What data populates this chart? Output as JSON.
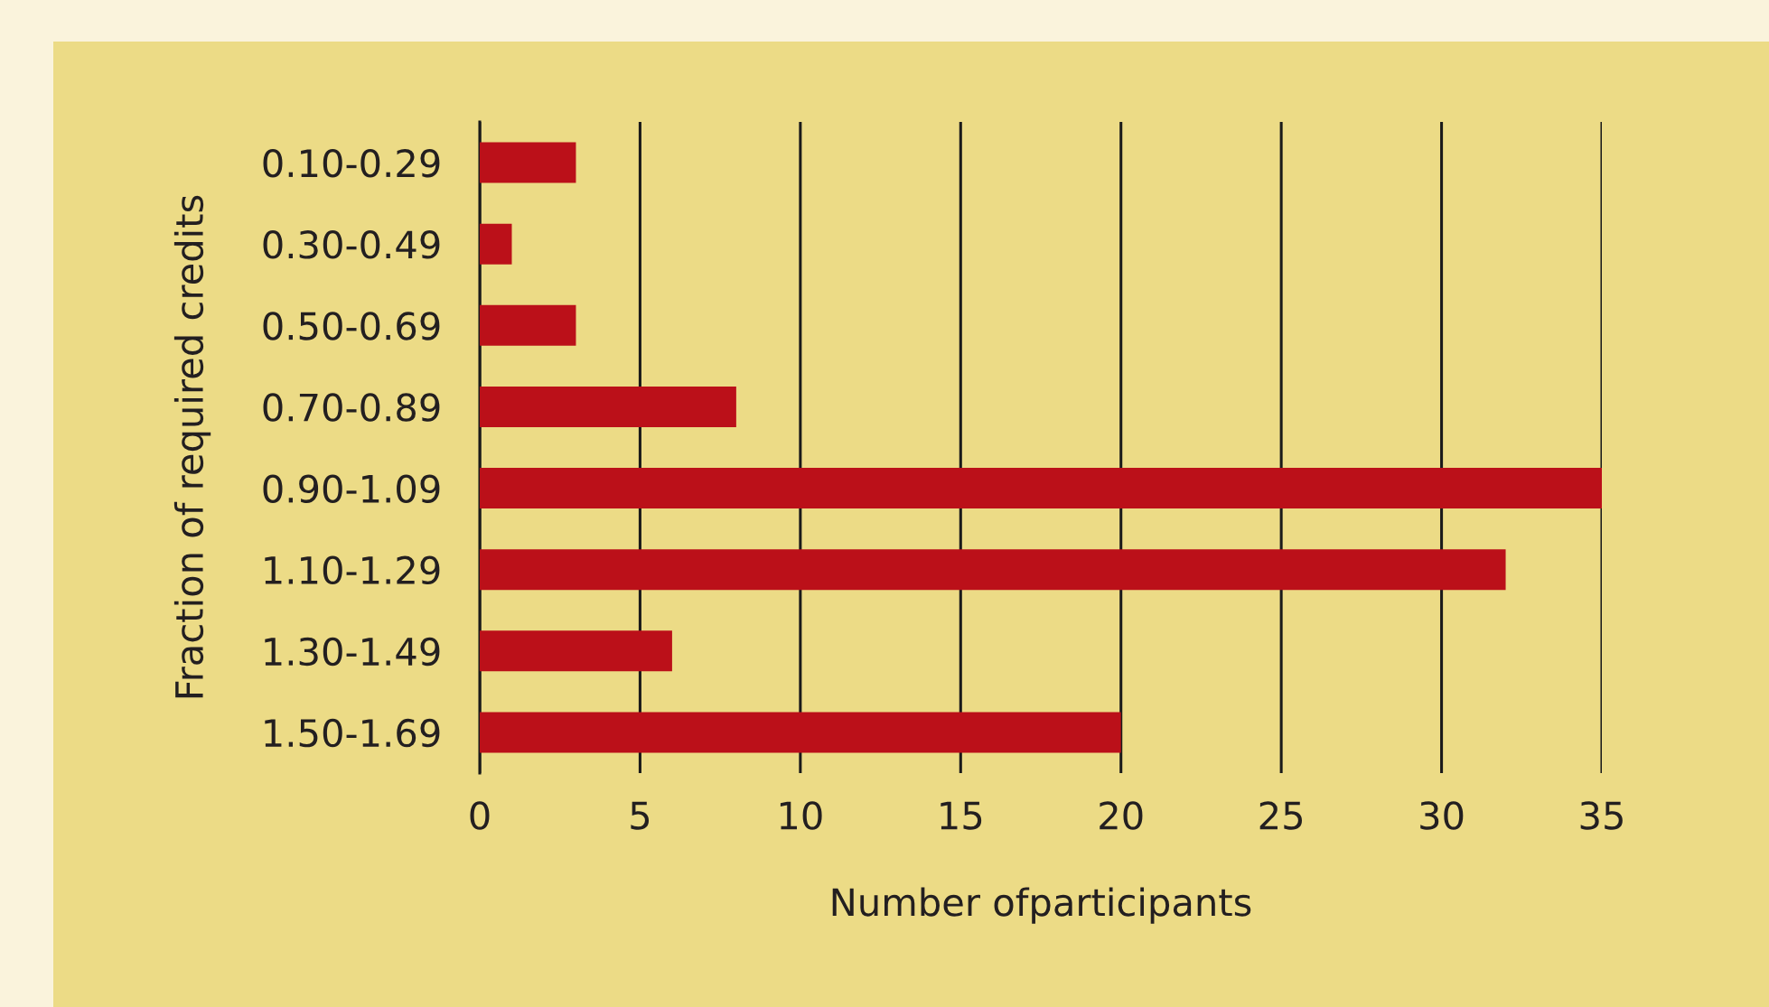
{
  "chart_data": {
    "type": "bar",
    "orientation": "horizontal",
    "categories": [
      "0.10-0.29",
      "0.30-0.49",
      "0.50-0.69",
      "0.70-0.89",
      "0.90-1.09",
      "1.10-1.29",
      "1.30-1.49",
      "1.50-1.69"
    ],
    "values": [
      3,
      1,
      3,
      8,
      35,
      32,
      6,
      20
    ],
    "color": "#bb1019",
    "xlim": [
      0,
      35
    ],
    "xticks": [
      0,
      5,
      10,
      15,
      20,
      25,
      30,
      35
    ],
    "grid": "x",
    "xlabel": "Number ofparticipants",
    "ylabel": "Fraction of required credits"
  }
}
